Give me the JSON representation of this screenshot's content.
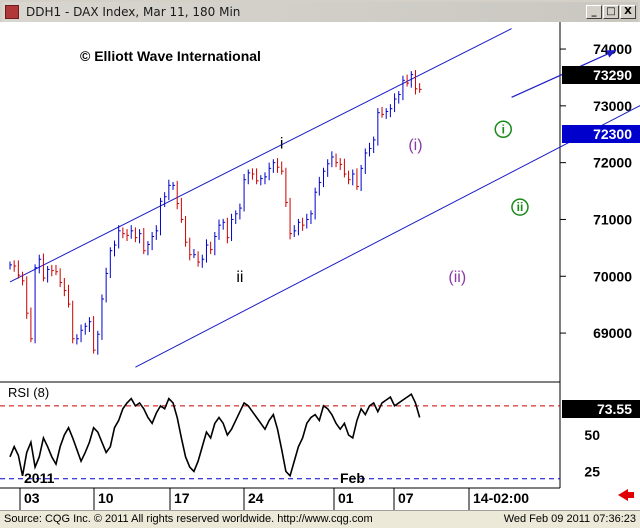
{
  "window": {
    "title": "DDH1 - DAX Index, Mar 11, 180 Min",
    "minimize_glyph": "_",
    "maximize_glyph": "□",
    "close_glyph": "X"
  },
  "status_bar": {
    "left": "Source: CQG Inc. © 2011 All rights reserved worldwide. http://www.cqg.com",
    "right": "Wed Feb 09 2011 07:36:23"
  },
  "colors": {
    "up_bar": "#0000cc",
    "down_bar": "#cc0000",
    "channel": "#1c1cc8",
    "wave_i": "#000000",
    "wave_minor": "#8a3aa0",
    "wave_minute": "#1a8a1a",
    "price_box": "#000000",
    "marker_box": "#0000cc"
  },
  "chart_data": [
    {
      "type": "bar",
      "title": "© Elliott Wave International",
      "price_axis": {
        "ticks": [
          69000,
          70000,
          71000,
          72000,
          73000,
          74000
        ],
        "range": [
          6835,
          7430
        ]
      },
      "last_price": "73290",
      "marker_price": "72300",
      "date_axis": {
        "year_label": "2011",
        "month_label": "Feb",
        "ticks": [
          "03",
          "10",
          "17",
          "24",
          "01",
          "07",
          "14-02:00"
        ]
      },
      "closes": [
        7020,
        7018,
        7002,
        6992,
        6935,
        6890,
        7015,
        7030,
        6997,
        7012,
        7010,
        7008,
        6989,
        6975,
        6951,
        6890,
        6890,
        6905,
        6912,
        6920,
        6870,
        6898,
        6960,
        7005,
        7045,
        7055,
        7080,
        7075,
        7072,
        7080,
        7068,
        7075,
        7045,
        7056,
        7070,
        7080,
        7132,
        7140,
        7160,
        7160,
        7128,
        7100,
        7060,
        7038,
        7038,
        7025,
        7030,
        7055,
        7047,
        7070,
        7090,
        7095,
        7068,
        7100,
        7110,
        7120,
        7170,
        7182,
        7180,
        7168,
        7172,
        7175,
        7190,
        7200,
        7192,
        7185,
        7130,
        7075,
        7080,
        7095,
        7090,
        7100,
        7110,
        7148,
        7165,
        7185,
        7198,
        7210,
        7200,
        7197,
        7180,
        7170,
        7180,
        7158,
        7190,
        7217,
        7225,
        7240,
        7288,
        7285,
        7290,
        7295,
        7312,
        7320,
        7345,
        7340,
        7355,
        7330,
        7329
      ],
      "wave_labels": [
        {
          "text": "i",
          "bar": 65,
          "price": 7225,
          "style": "plain"
        },
        {
          "text": "ii",
          "bar": 55,
          "price": 6990,
          "style": "plain"
        },
        {
          "text": "(i)",
          "bar": 97,
          "price": 7222,
          "style": "paren"
        },
        {
          "text": "(ii)",
          "bar": 107,
          "price": 6990,
          "style": "paren"
        },
        {
          "text": "i",
          "bar": 118,
          "price": 7250,
          "style": "circle"
        },
        {
          "text": "ii",
          "bar": 122,
          "price": 7113,
          "style": "circle"
        }
      ],
      "channel": {
        "upper": [
          [
            0,
            6990
          ],
          [
            120,
            7436
          ]
        ],
        "lower": [
          [
            30,
            6840
          ],
          [
            175,
            7393
          ]
        ]
      },
      "trend_arrow": [
        [
          120,
          7315
        ],
        [
          145,
          7398
        ]
      ],
      "indicator": {
        "label": "RSI (8)",
        "last_value": "73.55",
        "ticks": [
          25,
          50
        ],
        "overbought_level": 70,
        "oversold_level": 20,
        "values": [
          35,
          42,
          36,
          22,
          38,
          45,
          28,
          35,
          48,
          42,
          35,
          30,
          42,
          50,
          55,
          48,
          40,
          32,
          38,
          45,
          55,
          52,
          45,
          38,
          42,
          55,
          60,
          68,
          72,
          75,
          70,
          72,
          68,
          62,
          58,
          65,
          70,
          68,
          75,
          72,
          62,
          48,
          35,
          28,
          25,
          32,
          42,
          52,
          48,
          58,
          62,
          58,
          50,
          54,
          60,
          66,
          72,
          70,
          66,
          62,
          58,
          54,
          60,
          64,
          54,
          40,
          25,
          22,
          32,
          42,
          48,
          58,
          62,
          64,
          60,
          70,
          68,
          64,
          58,
          54,
          58,
          50,
          48,
          60,
          68,
          64,
          70,
          72,
          66,
          72,
          74,
          76,
          70,
          72,
          74,
          76,
          78,
          72,
          62
        ]
      }
    }
  ]
}
